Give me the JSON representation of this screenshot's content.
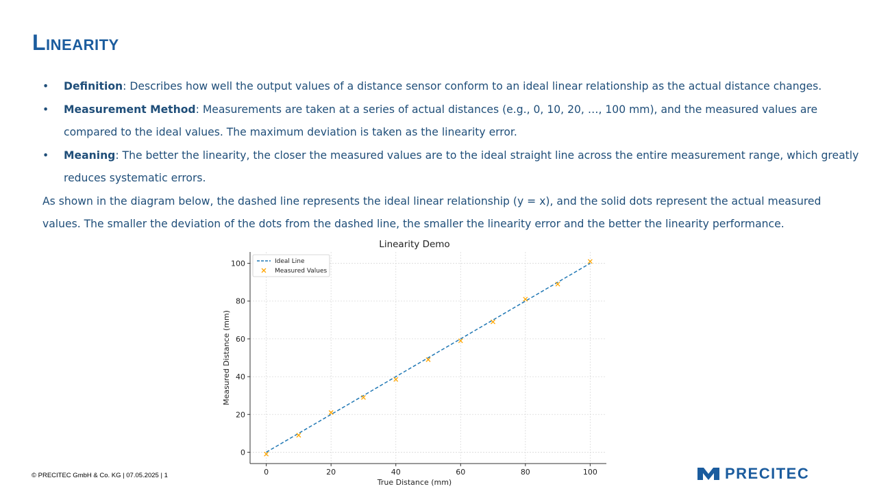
{
  "slide": {
    "title": "Linearity"
  },
  "bullets": [
    {
      "term": "Definition",
      "text": ": Describes how well the output values of a distance sensor conform to an ideal linear relationship as the actual distance changes."
    },
    {
      "term": "Measurement Method",
      "text": ": Measurements are taken at a series of actual distances (e.g., 0, 10, 20, …, 100 mm), and the measured values are compared to the ideal values. The maximum deviation is taken as the linearity error."
    },
    {
      "term": "Meaning",
      "text": ": The better the linearity, the closer the measured values are to the ideal straight line across the entire measurement range, which greatly reduces systematic errors."
    }
  ],
  "paragraph": "As shown in the diagram below, the dashed line represents the ideal linear relationship (y = x), and the solid dots represent the actual measured values. The smaller the deviation of the dots from the dashed line, the smaller the linearity error and the better the linearity performance.",
  "chart_data": {
    "type": "scatter",
    "title": "Linearity Demo",
    "xlabel": "True Distance (mm)",
    "ylabel": "Measured Distance (mm)",
    "xlim": [
      -5,
      105
    ],
    "ylim": [
      -6,
      106
    ],
    "xticks": [
      0,
      20,
      40,
      60,
      80,
      100
    ],
    "yticks": [
      0,
      20,
      40,
      60,
      80,
      100
    ],
    "grid": true,
    "legend_position": "top-left",
    "series": [
      {
        "name": "Ideal Line",
        "style": "dashed-line",
        "color": "#1f77b4",
        "x": [
          0,
          100
        ],
        "y": [
          0,
          100
        ]
      },
      {
        "name": "Measured Values",
        "style": "x-marker",
        "color": "#ffa500",
        "x": [
          0,
          10,
          20,
          30,
          40,
          50,
          60,
          70,
          80,
          90,
          100
        ],
        "y": [
          -1,
          9,
          21,
          29,
          38.5,
          49,
          59,
          69,
          81,
          89,
          101
        ]
      }
    ]
  },
  "footer": {
    "text": "© PRECITEC GmbH & Co. KG | 07.05.2025 | 1"
  },
  "logo": {
    "text": "PRECITEC",
    "color": "#1b5c9e"
  }
}
